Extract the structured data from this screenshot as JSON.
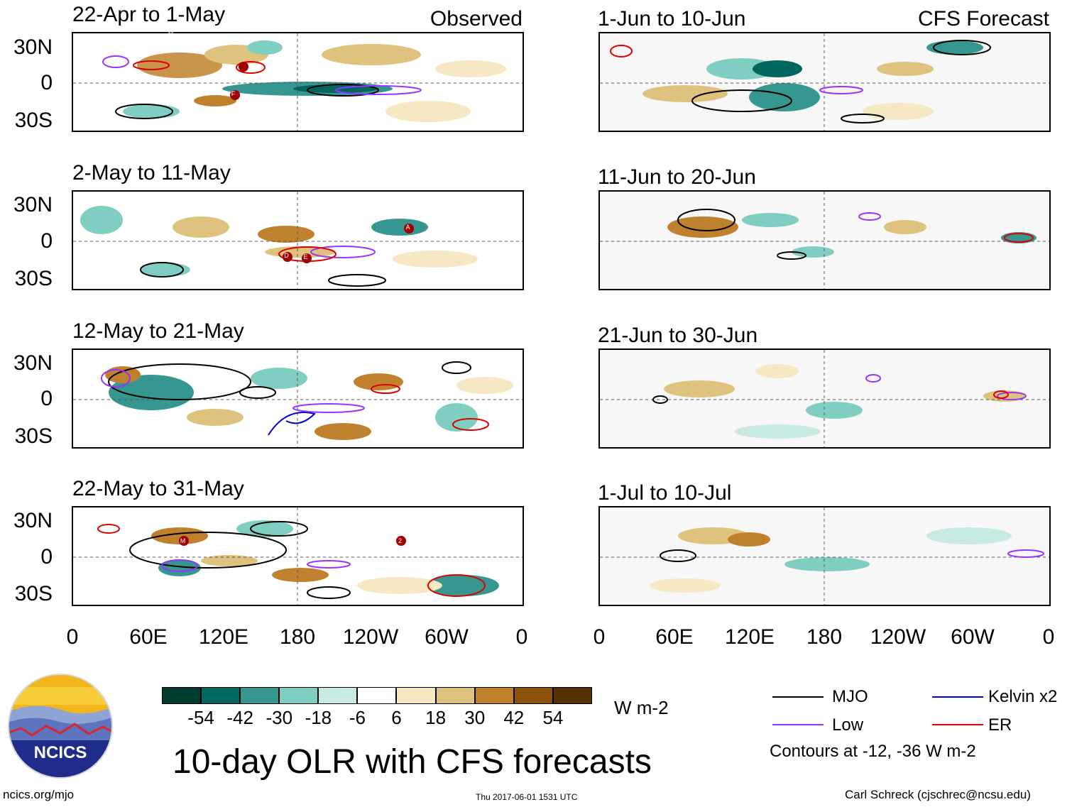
{
  "columns": {
    "left_tag": "Observed",
    "right_tag": "CFS Forecast"
  },
  "panels_left": [
    {
      "title": "22-Apr to 1-May"
    },
    {
      "title": "2-May to 11-May"
    },
    {
      "title": "12-May to 21-May"
    },
    {
      "title": "22-May to 31-May"
    }
  ],
  "panels_right": [
    {
      "title": "1-Jun to 10-Jun"
    },
    {
      "title": "11-Jun to 20-Jun"
    },
    {
      "title": "21-Jun to 30-Jun"
    },
    {
      "title": "1-Jul to 10-Jul"
    }
  ],
  "lat_ticks": [
    "30N",
    "0",
    "30S"
  ],
  "lon_ticks": [
    "0",
    "60E",
    "120E",
    "180",
    "120W",
    "60W",
    "0"
  ],
  "storm_markers": {
    "p1": [
      "M",
      "F"
    ],
    "p2": [
      "A",
      "D",
      "E"
    ],
    "p4": [
      "M",
      "2"
    ]
  },
  "colorbar": {
    "labels": [
      "-54",
      "-42",
      "-30",
      "-18",
      "-6",
      "6",
      "18",
      "30",
      "42",
      "54"
    ],
    "colors": [
      "#003c30",
      "#01665e",
      "#35978f",
      "#80cdc1",
      "#c7eae5",
      "#ffffff",
      "#f6e8c3",
      "#dfc27d",
      "#bf812d",
      "#8c510a",
      "#543005"
    ],
    "units": "W m-2"
  },
  "legend": {
    "mjo": "MJO",
    "kelvin": "Kelvin x2",
    "low": "Low",
    "er": "ER",
    "contours_note": "Contours at -12, -36 W m-2",
    "colors": {
      "mjo": "#000000",
      "kelvin": "#0000cc",
      "low": "#9933ff",
      "er": "#dd0000"
    }
  },
  "logo": {
    "text": "NCICS"
  },
  "main_title": "10-day OLR with CFS forecasts",
  "footer": {
    "url": "ncics.org/mjo",
    "timestamp": "Thu 2017-06-01 1531 UTC",
    "credit": "Carl Schreck (cjschrec@ncsu.edu)"
  }
}
